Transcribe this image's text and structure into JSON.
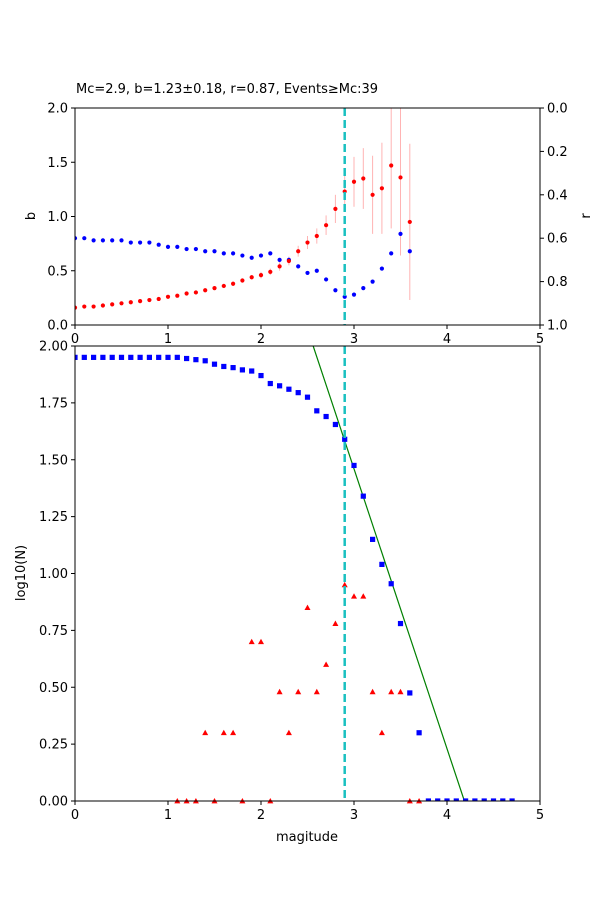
{
  "chart_data": [
    {
      "type": "scatter",
      "title": "Mc=2.9, b=1.23±0.18, r=0.87, Events≥Mc:39",
      "xlabel": "",
      "ylabel": "b",
      "ylabel_right": "r",
      "xlim": [
        0,
        5
      ],
      "ylim": [
        0,
        2.0
      ],
      "ylim_right": [
        1.0,
        0.0
      ],
      "x_ticks": [
        "0",
        "1",
        "2",
        "3",
        "4",
        "5"
      ],
      "y_ticks": [
        "0.0",
        "0.5",
        "1.0",
        "1.5",
        "2.0"
      ],
      "y_ticks_right": [
        "0.0",
        "0.2",
        "0.4",
        "0.6",
        "0.8",
        "1.0"
      ],
      "mc_line": {
        "x": 2.9,
        "color": "#1ac0c0"
      },
      "series": [
        {
          "color": "#ff0000",
          "axis": "left",
          "x": [
            0.0,
            0.1,
            0.2,
            0.3,
            0.4,
            0.5,
            0.6,
            0.7,
            0.8,
            0.9,
            1.0,
            1.1,
            1.2,
            1.3,
            1.4,
            1.5,
            1.6,
            1.7,
            1.8,
            1.9,
            2.0,
            2.1,
            2.2,
            2.3,
            2.4,
            2.5,
            2.6,
            2.7,
            2.8,
            2.9,
            3.0,
            3.1,
            3.2,
            3.3,
            3.4,
            3.5,
            3.6
          ],
          "y": [
            0.16,
            0.17,
            0.17,
            0.18,
            0.19,
            0.2,
            0.21,
            0.22,
            0.23,
            0.24,
            0.26,
            0.27,
            0.29,
            0.3,
            0.32,
            0.34,
            0.36,
            0.38,
            0.41,
            0.44,
            0.46,
            0.49,
            0.54,
            0.59,
            0.68,
            0.76,
            0.82,
            0.92,
            1.07,
            1.23,
            1.32,
            1.35,
            1.2,
            1.26,
            1.47,
            1.36,
            0.95
          ],
          "err": [
            0.01,
            0.01,
            0.01,
            0.01,
            0.01,
            0.01,
            0.01,
            0.01,
            0.01,
            0.01,
            0.01,
            0.01,
            0.01,
            0.01,
            0.01,
            0.01,
            0.02,
            0.02,
            0.02,
            0.02,
            0.03,
            0.03,
            0.04,
            0.04,
            0.05,
            0.06,
            0.07,
            0.09,
            0.13,
            0.18,
            0.23,
            0.28,
            0.36,
            0.42,
            0.58,
            0.72,
            0.72
          ]
        },
        {
          "color": "#0000ff",
          "axis": "right",
          "x": [
            0.0,
            0.1,
            0.2,
            0.3,
            0.4,
            0.5,
            0.6,
            0.7,
            0.8,
            0.9,
            1.0,
            1.1,
            1.2,
            1.3,
            1.4,
            1.5,
            1.6,
            1.7,
            1.8,
            1.9,
            2.0,
            2.1,
            2.2,
            2.3,
            2.4,
            2.5,
            2.6,
            2.7,
            2.8,
            2.9,
            3.0,
            3.1,
            3.2,
            3.3,
            3.4,
            3.5,
            3.6
          ],
          "y": [
            0.6,
            0.6,
            0.61,
            0.61,
            0.61,
            0.61,
            0.62,
            0.62,
            0.62,
            0.63,
            0.64,
            0.64,
            0.65,
            0.65,
            0.66,
            0.66,
            0.67,
            0.67,
            0.68,
            0.69,
            0.68,
            0.67,
            0.7,
            0.7,
            0.73,
            0.76,
            0.75,
            0.79,
            0.84,
            0.87,
            0.86,
            0.83,
            0.8,
            0.74,
            0.67,
            0.58,
            0.66
          ]
        }
      ]
    },
    {
      "type": "scatter",
      "title": "",
      "xlabel": "magitude",
      "ylabel": "log10(N)",
      "xlim": [
        0,
        5
      ],
      "ylim": [
        0,
        2.0
      ],
      "x_ticks": [
        "0",
        "1",
        "2",
        "3",
        "4",
        "5"
      ],
      "y_ticks": [
        "0.00",
        "0.25",
        "0.50",
        "0.75",
        "1.00",
        "1.25",
        "1.50",
        "1.75",
        "2.00"
      ],
      "mc_line": {
        "x": 2.9,
        "color": "#1ac0c0"
      },
      "fit_line": {
        "a": 5.15,
        "b": 1.23,
        "color": "#008000"
      },
      "series": [
        {
          "color": "#0000ff",
          "marker": "square",
          "x": [
            0.0,
            0.1,
            0.2,
            0.3,
            0.4,
            0.5,
            0.6,
            0.7,
            0.8,
            0.9,
            1.0,
            1.1,
            1.2,
            1.3,
            1.4,
            1.5,
            1.6,
            1.7,
            1.8,
            1.9,
            2.0,
            2.1,
            2.2,
            2.3,
            2.4,
            2.5,
            2.6,
            2.7,
            2.8,
            2.9,
            3.0,
            3.1,
            3.2,
            3.3,
            3.4,
            3.5,
            3.6,
            3.7,
            3.8,
            3.9,
            4.0,
            4.1,
            4.2,
            4.3,
            4.4,
            4.5,
            4.6,
            4.7
          ],
          "y": [
            1.95,
            1.95,
            1.95,
            1.95,
            1.95,
            1.95,
            1.95,
            1.95,
            1.95,
            1.95,
            1.95,
            1.95,
            1.945,
            1.94,
            1.935,
            1.92,
            1.91,
            1.905,
            1.895,
            1.89,
            1.87,
            1.835,
            1.825,
            1.81,
            1.795,
            1.775,
            1.715,
            1.69,
            1.655,
            1.59,
            1.475,
            1.34,
            1.15,
            1.04,
            0.955,
            0.78,
            0.475,
            0.3,
            0,
            0,
            0,
            0,
            0,
            0,
            0,
            0,
            0,
            0
          ]
        },
        {
          "color": "#ff0000",
          "marker": "triangle",
          "x": [
            1.1,
            1.2,
            1.3,
            1.4,
            1.5,
            1.6,
            1.7,
            1.8,
            1.9,
            2.0,
            2.1,
            2.2,
            2.3,
            2.4,
            2.5,
            2.6,
            2.7,
            2.8,
            2.9,
            3.0,
            3.1,
            3.2,
            3.3,
            3.4,
            3.5,
            3.6,
            3.7
          ],
          "y": [
            0,
            0,
            0,
            0.3,
            0,
            0.3,
            0.3,
            0,
            0.7,
            0.7,
            0,
            0.48,
            0.3,
            0.48,
            0.85,
            0.48,
            0.6,
            0.78,
            0.95,
            0.9,
            0.9,
            0.48,
            0.3,
            0.48,
            0.48,
            0,
            0
          ]
        }
      ]
    }
  ]
}
